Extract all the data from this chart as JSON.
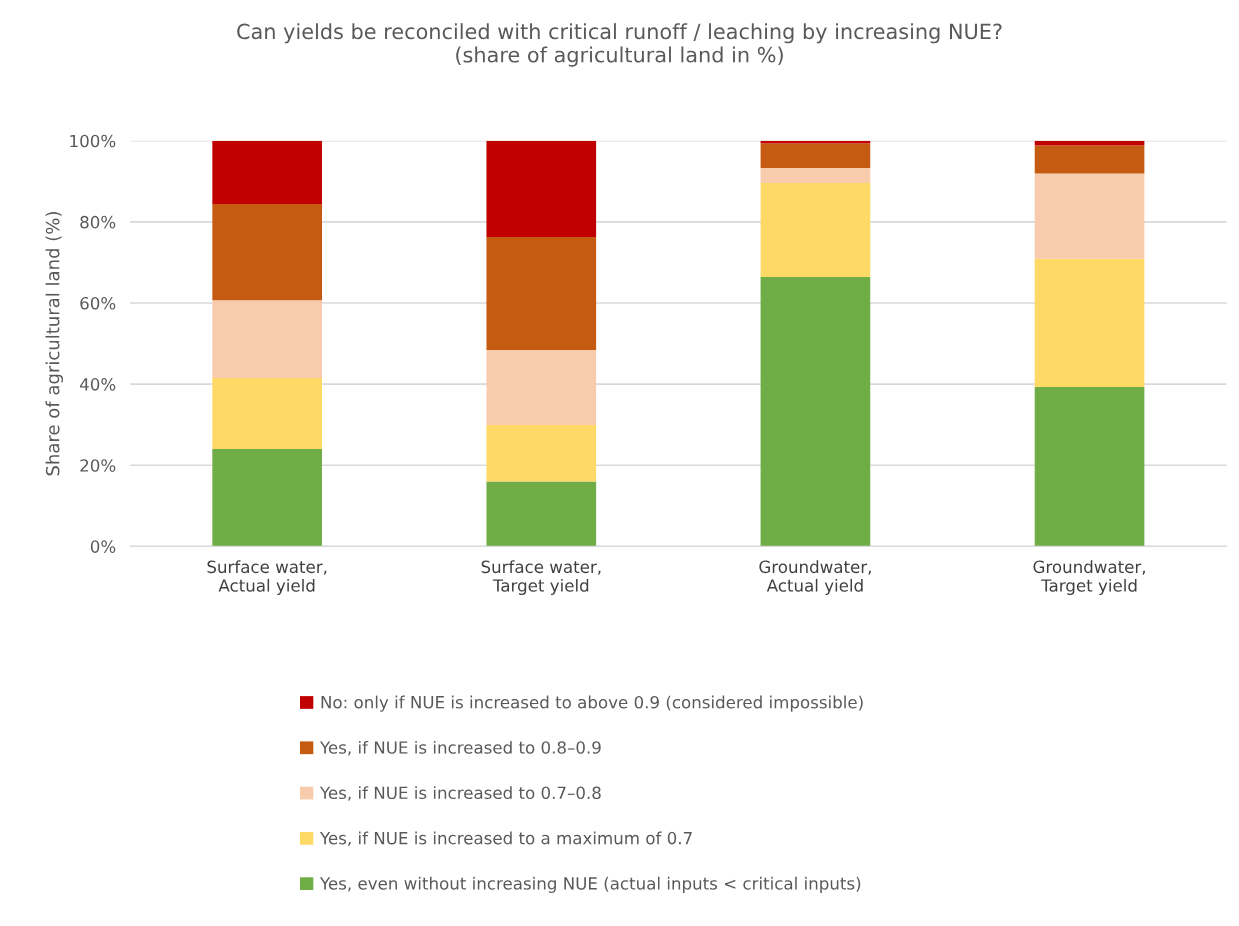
{
  "chart_data": {
    "type": "bar",
    "stacked": true,
    "title": "Can yields be reconciled with critical runoff / leaching by increasing NUE?\n(share of agricultural land in %)",
    "ylabel": "Share of agricultural land (%)",
    "categories": [
      "Surface water,\nActual yield",
      "Surface water,\nTarget yield",
      "Groundwater,\nActual yield",
      "Groundwater,\nTarget yield"
    ],
    "series": [
      {
        "name": "Yes, even without increasing NUE (actual inputs < critical inputs)",
        "color": "#70ad47",
        "values": [
          24.0,
          16.0,
          66.4,
          39.3
        ]
      },
      {
        "name": "Yes, if NUE is increased to a maximum of 0.7",
        "color": "#ffd966",
        "values": [
          17.5,
          13.9,
          23.2,
          31.6
        ]
      },
      {
        "name": "Yes, if NUE is increased to 0.7–0.8",
        "color": "#f8cbad",
        "values": [
          19.2,
          18.5,
          3.7,
          21.0
        ]
      },
      {
        "name": "Yes, if NUE is increased to 0.8–0.9",
        "color": "#c55a11",
        "values": [
          23.7,
          27.9,
          6.0,
          6.9
        ]
      },
      {
        "name": "No: only if NUE is increased to above 0.9 (considered impossible)",
        "color": "#c00000",
        "values": [
          15.6,
          23.7,
          0.7,
          1.2
        ]
      }
    ],
    "ylim": [
      0,
      100
    ],
    "yticks": [
      {
        "value": 0,
        "label": "0%"
      },
      {
        "value": 20,
        "label": "20%"
      },
      {
        "value": 40,
        "label": "40%"
      },
      {
        "value": 60,
        "label": "60%"
      },
      {
        "value": 80,
        "label": "80%"
      },
      {
        "value": 100,
        "label": "100%"
      }
    ],
    "grid": "y",
    "legend": "bottom"
  }
}
